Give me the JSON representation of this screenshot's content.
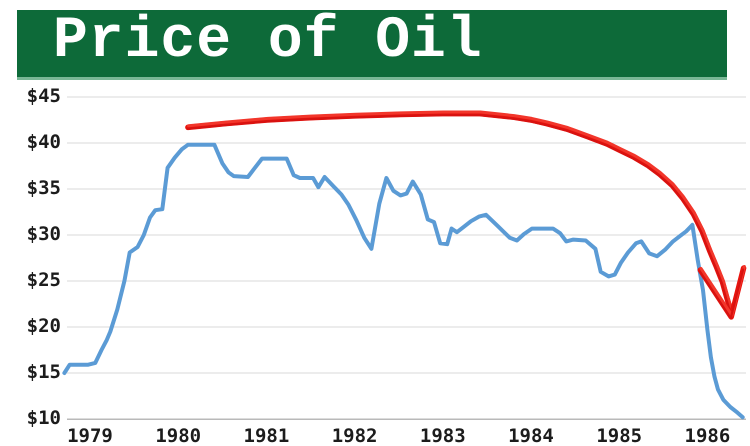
{
  "header": {
    "title": "Price of Oil"
  },
  "colors": {
    "background": "#ffffff",
    "banner_green": "#0d6a39",
    "banner_bottom_edge": "#79b796",
    "title_text": "#ffffff",
    "price_line_blue": "#5b9bd5",
    "annotation_red": "#e9130d",
    "annotation_red_light": "#f2362b",
    "annotation_red_dark": "#d81210",
    "gridline_gray": "#d8d8d8",
    "axis_gray": "#b9b9b9",
    "label_text": "#1c1c1c"
  },
  "chart_data": {
    "type": "line",
    "title": "Price of Oil",
    "xlabel": "",
    "ylabel": "",
    "grid": "horizontal",
    "legend": "none",
    "xlim": [
      1978.66,
      1986.46
    ],
    "ylim": [
      10,
      45
    ],
    "x_ticks": [
      1979,
      1980,
      1981,
      1982,
      1983,
      1984,
      1985,
      1986
    ],
    "x_tick_labels": [
      "1979",
      "1980",
      "1981",
      "1982",
      "1983",
      "1984",
      "1985",
      "1986"
    ],
    "y_ticks": [
      45,
      40,
      35,
      30,
      25,
      20,
      15,
      10
    ],
    "y_tick_labels": [
      "$45",
      "$40",
      "$35",
      "$30",
      "$25",
      "$20",
      "$15",
      "$10"
    ],
    "series": [
      {
        "name": "oil-price-actual",
        "color": "#5b9bd5",
        "style": "solid",
        "width": 4,
        "points": [
          [
            1978.71,
            15.0
          ],
          [
            1978.77,
            15.9
          ],
          [
            1978.98,
            15.9
          ],
          [
            1979.06,
            16.1
          ],
          [
            1979.13,
            17.5
          ],
          [
            1979.19,
            18.6
          ],
          [
            1979.23,
            19.5
          ],
          [
            1979.31,
            21.9
          ],
          [
            1979.39,
            25.0
          ],
          [
            1979.45,
            28.1
          ],
          [
            1979.54,
            28.7
          ],
          [
            1979.61,
            30.0
          ],
          [
            1979.68,
            31.9
          ],
          [
            1979.74,
            32.7
          ],
          [
            1979.82,
            32.8
          ],
          [
            1979.88,
            37.3
          ],
          [
            1979.96,
            38.4
          ],
          [
            1980.04,
            39.3
          ],
          [
            1980.11,
            39.8
          ],
          [
            1980.41,
            39.8
          ],
          [
            1980.5,
            37.8
          ],
          [
            1980.57,
            36.8
          ],
          [
            1980.63,
            36.4
          ],
          [
            1980.79,
            36.3
          ],
          [
            1980.87,
            37.3
          ],
          [
            1980.95,
            38.3
          ],
          [
            1981.23,
            38.3
          ],
          [
            1981.31,
            36.5
          ],
          [
            1981.38,
            36.2
          ],
          [
            1981.53,
            36.2
          ],
          [
            1981.59,
            35.2
          ],
          [
            1981.66,
            36.3
          ],
          [
            1981.76,
            35.3
          ],
          [
            1981.85,
            34.4
          ],
          [
            1981.93,
            33.3
          ],
          [
            1982.02,
            31.6
          ],
          [
            1982.11,
            29.7
          ],
          [
            1982.19,
            28.5
          ],
          [
            1982.28,
            33.4
          ],
          [
            1982.36,
            36.2
          ],
          [
            1982.44,
            34.8
          ],
          [
            1982.52,
            34.3
          ],
          [
            1982.59,
            34.5
          ],
          [
            1982.66,
            35.8
          ],
          [
            1982.75,
            34.4
          ],
          [
            1982.83,
            31.7
          ],
          [
            1982.9,
            31.4
          ],
          [
            1982.97,
            29.1
          ],
          [
            1983.05,
            29.0
          ],
          [
            1983.1,
            30.7
          ],
          [
            1983.16,
            30.3
          ],
          [
            1983.24,
            30.9
          ],
          [
            1983.32,
            31.5
          ],
          [
            1983.41,
            32.0
          ],
          [
            1983.49,
            32.2
          ],
          [
            1983.61,
            31.1
          ],
          [
            1983.76,
            29.7
          ],
          [
            1983.84,
            29.4
          ],
          [
            1983.92,
            30.1
          ],
          [
            1984.01,
            30.7
          ],
          [
            1984.25,
            30.7
          ],
          [
            1984.33,
            30.2
          ],
          [
            1984.4,
            29.3
          ],
          [
            1984.48,
            29.5
          ],
          [
            1984.62,
            29.4
          ],
          [
            1984.73,
            28.5
          ],
          [
            1984.79,
            26.0
          ],
          [
            1984.88,
            25.5
          ],
          [
            1984.95,
            25.7
          ],
          [
            1985.02,
            27.0
          ],
          [
            1985.1,
            28.1
          ],
          [
            1985.19,
            29.1
          ],
          [
            1985.25,
            29.3
          ],
          [
            1985.34,
            28.0
          ],
          [
            1985.43,
            27.7
          ],
          [
            1985.52,
            28.4
          ],
          [
            1985.61,
            29.3
          ],
          [
            1985.69,
            29.9
          ],
          [
            1985.76,
            30.4
          ],
          [
            1985.83,
            31.1
          ],
          [
            1985.89,
            27.3
          ],
          [
            1985.95,
            24.0
          ],
          [
            1986.0,
            19.7
          ],
          [
            1986.04,
            16.7
          ],
          [
            1986.08,
            14.6
          ],
          [
            1986.12,
            13.2
          ],
          [
            1986.18,
            12.1
          ],
          [
            1986.26,
            11.3
          ],
          [
            1986.34,
            10.7
          ],
          [
            1986.4,
            10.2
          ]
        ]
      },
      {
        "name": "hand-drawn-annotation",
        "color": "#e9130d",
        "style": "crayon",
        "width": 6,
        "points": [
          [
            1980.11,
            41.7
          ],
          [
            1980.53,
            42.1
          ],
          [
            1981.01,
            42.5
          ],
          [
            1981.49,
            42.75
          ],
          [
            1982.01,
            42.95
          ],
          [
            1982.52,
            43.1
          ],
          [
            1983.0,
            43.2
          ],
          [
            1983.42,
            43.2
          ],
          [
            1983.8,
            42.8
          ],
          [
            1984.0,
            42.5
          ],
          [
            1984.18,
            42.1
          ],
          [
            1984.41,
            41.5
          ],
          [
            1984.64,
            40.7
          ],
          [
            1984.86,
            39.9
          ],
          [
            1985.01,
            39.2
          ],
          [
            1985.16,
            38.5
          ],
          [
            1985.32,
            37.6
          ],
          [
            1985.46,
            36.6
          ],
          [
            1985.6,
            35.4
          ],
          [
            1985.72,
            34.0
          ],
          [
            1985.84,
            32.3
          ],
          [
            1985.94,
            30.4
          ],
          [
            1986.03,
            28.2
          ],
          [
            1986.1,
            26.6
          ],
          [
            1986.17,
            24.9
          ],
          [
            1986.22,
            23.2
          ],
          [
            1986.27,
            21.6
          ]
        ]
      },
      {
        "name": "hand-drawn-annotation-tip",
        "color": "#e9130d",
        "style": "crayon",
        "width": 6,
        "points": [
          [
            1985.92,
            26.2
          ],
          [
            1986.27,
            21.1
          ],
          [
            1986.41,
            26.4
          ]
        ]
      }
    ]
  }
}
